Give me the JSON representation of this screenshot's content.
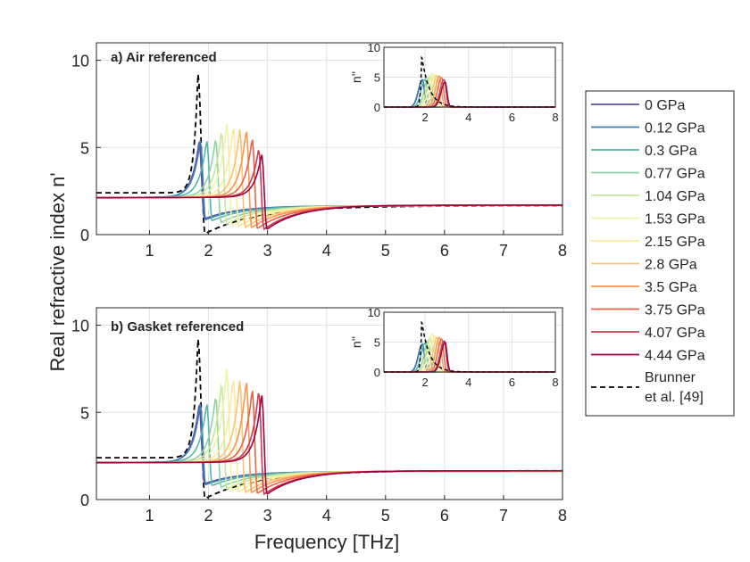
{
  "chart_data": {
    "type": "line",
    "ylabel": "Real refractive index n'",
    "xlabel": "Frequency [THz]",
    "legend": {
      "placement": "right",
      "entries": [
        {
          "label": "0 GPa",
          "color": "#5E4FA2"
        },
        {
          "label": "0.12 GPa",
          "color": "#3A7DB8"
        },
        {
          "label": "0.3 GPa",
          "color": "#52B6A9"
        },
        {
          "label": "0.77 GPa",
          "color": "#8FD2A4"
        },
        {
          "label": "1.04 GPa",
          "color": "#C8E89C"
        },
        {
          "label": "1.53 GPa",
          "color": "#EEF5A8"
        },
        {
          "label": "2.15 GPa",
          "color": "#FDE9A0"
        },
        {
          "label": "2.8 GPa",
          "color": "#FDC46E"
        },
        {
          "label": "3.5 GPa",
          "color": "#F79656"
        },
        {
          "label": "3.75 GPa",
          "color": "#EB6145"
        },
        {
          "label": "4.07 GPa",
          "color": "#CE3C4D"
        },
        {
          "label": "4.44 GPa",
          "color": "#9E0142"
        },
        {
          "label": "Brunner et al. [49]",
          "label_lines": [
            "Brunner",
            "et al. [49]"
          ],
          "color": "#000000",
          "dashed": true
        }
      ]
    },
    "panels": [
      {
        "id": "a",
        "title": "a) Air referenced",
        "xlim": [
          0.1,
          8
        ],
        "ylim": [
          0,
          11
        ],
        "xticks": [
          1,
          2,
          3,
          4,
          5,
          6,
          7,
          8
        ],
        "yticks": [
          0,
          5,
          10
        ],
        "grid": true,
        "series_params": [
          {
            "name": "0 GPa",
            "peak_x": 1.84,
            "peak_y": 5.3,
            "min_y": 0.9,
            "base": 2.1,
            "high": 1.65
          },
          {
            "name": "0.12 GPa",
            "peak_x": 1.86,
            "peak_y": 5.4,
            "min_y": 0.85,
            "base": 2.12,
            "high": 1.65
          },
          {
            "name": "0.3 GPa",
            "peak_x": 1.97,
            "peak_y": 5.4,
            "min_y": 0.8,
            "base": 2.12,
            "high": 1.65
          },
          {
            "name": "0.77 GPa",
            "peak_x": 2.12,
            "peak_y": 5.5,
            "min_y": 0.7,
            "base": 2.12,
            "high": 1.65
          },
          {
            "name": "1.04 GPa",
            "peak_x": 2.22,
            "peak_y": 5.9,
            "min_y": 0.6,
            "base": 2.12,
            "high": 1.66
          },
          {
            "name": "1.53 GPa",
            "peak_x": 2.31,
            "peak_y": 6.4,
            "min_y": 0.5,
            "base": 2.12,
            "high": 1.66
          },
          {
            "name": "2.15 GPa",
            "peak_x": 2.42,
            "peak_y": 6.2,
            "min_y": 0.45,
            "base": 2.12,
            "high": 1.67
          },
          {
            "name": "2.8 GPa",
            "peak_x": 2.53,
            "peak_y": 6.0,
            "min_y": 0.4,
            "base": 2.12,
            "high": 1.67
          },
          {
            "name": "3.5 GPa",
            "peak_x": 2.64,
            "peak_y": 6.0,
            "min_y": 0.4,
            "base": 2.12,
            "high": 1.68
          },
          {
            "name": "3.75 GPa",
            "peak_x": 2.74,
            "peak_y": 5.5,
            "min_y": 0.35,
            "base": 2.12,
            "high": 1.68
          },
          {
            "name": "4.07 GPa",
            "peak_x": 2.85,
            "peak_y": 4.9,
            "min_y": 0.3,
            "base": 2.12,
            "high": 1.69
          },
          {
            "name": "4.44 GPa",
            "peak_x": 2.9,
            "peak_y": 4.6,
            "min_y": 0.3,
            "base": 2.12,
            "high": 1.69
          }
        ],
        "reference": {
          "name": "Brunner et al. [49]",
          "peak_x": 1.82,
          "peak_y": 9.2,
          "min_y": 0.05,
          "base": 2.4,
          "high": 1.65
        },
        "inset": {
          "ylabel": "n''",
          "xlim": [
            0.1,
            8
          ],
          "ylim": [
            0,
            10
          ],
          "xticks": [
            2,
            4,
            6,
            8
          ],
          "yticks": [
            0,
            5,
            10
          ],
          "series_peaks": [
            {
              "x": 1.86,
              "y": 4.5
            },
            {
              "x": 1.88,
              "y": 4.6
            },
            {
              "x": 1.99,
              "y": 4.6
            },
            {
              "x": 2.14,
              "y": 4.8
            },
            {
              "x": 2.24,
              "y": 5.2
            },
            {
              "x": 2.33,
              "y": 5.6
            },
            {
              "x": 2.44,
              "y": 5.4
            },
            {
              "x": 2.55,
              "y": 5.3
            },
            {
              "x": 2.66,
              "y": 5.2
            },
            {
              "x": 2.76,
              "y": 4.9
            },
            {
              "x": 2.87,
              "y": 4.6
            },
            {
              "x": 2.92,
              "y": 4.2
            }
          ],
          "reference_peak": {
            "x": 1.84,
            "y": 8.6
          }
        }
      },
      {
        "id": "b",
        "title": "b) Gasket referenced",
        "xlim": [
          0.1,
          8
        ],
        "ylim": [
          0,
          11
        ],
        "xticks": [
          1,
          2,
          3,
          4,
          5,
          6,
          7,
          8
        ],
        "yticks": [
          0,
          5,
          10
        ],
        "grid": true,
        "series_params": [
          {
            "name": "0 GPa",
            "peak_x": 1.84,
            "peak_y": 5.4,
            "min_y": 0.9,
            "base": 2.1,
            "high": 1.6
          },
          {
            "name": "0.12 GPa",
            "peak_x": 1.86,
            "peak_y": 5.5,
            "min_y": 0.85,
            "base": 2.12,
            "high": 1.6
          },
          {
            "name": "0.3 GPa",
            "peak_x": 1.97,
            "peak_y": 5.5,
            "min_y": 0.8,
            "base": 2.12,
            "high": 1.6
          },
          {
            "name": "0.77 GPa",
            "peak_x": 2.12,
            "peak_y": 5.9,
            "min_y": 0.7,
            "base": 2.12,
            "high": 1.61
          },
          {
            "name": "1.04 GPa",
            "peak_x": 2.22,
            "peak_y": 6.7,
            "min_y": 0.6,
            "base": 2.12,
            "high": 1.62
          },
          {
            "name": "1.53 GPa",
            "peak_x": 2.31,
            "peak_y": 7.5,
            "min_y": 0.5,
            "base": 2.12,
            "high": 1.62
          },
          {
            "name": "2.15 GPa",
            "peak_x": 2.42,
            "peak_y": 7.0,
            "min_y": 0.45,
            "base": 2.12,
            "high": 1.63
          },
          {
            "name": "2.8 GPa",
            "peak_x": 2.53,
            "peak_y": 6.8,
            "min_y": 0.4,
            "base": 2.12,
            "high": 1.63
          },
          {
            "name": "3.5 GPa",
            "peak_x": 2.64,
            "peak_y": 6.8,
            "min_y": 0.4,
            "base": 2.12,
            "high": 1.64
          },
          {
            "name": "3.75 GPa",
            "peak_x": 2.74,
            "peak_y": 6.3,
            "min_y": 0.35,
            "base": 2.12,
            "high": 1.64
          },
          {
            "name": "4.07 GPa",
            "peak_x": 2.85,
            "peak_y": 6.2,
            "min_y": 0.3,
            "base": 2.12,
            "high": 1.65
          },
          {
            "name": "4.44 GPa",
            "peak_x": 2.9,
            "peak_y": 6.0,
            "min_y": 0.3,
            "base": 2.12,
            "high": 1.65
          }
        ],
        "reference": {
          "name": "Brunner et al. [49]",
          "peak_x": 1.82,
          "peak_y": 9.2,
          "min_y": 0.05,
          "base": 2.4,
          "high": 1.65
        },
        "inset": {
          "ylabel": "n''",
          "xlim": [
            0.1,
            8
          ],
          "ylim": [
            0,
            10
          ],
          "xticks": [
            2,
            4,
            6,
            8
          ],
          "yticks": [
            0,
            5,
            10
          ],
          "series_peaks": [
            {
              "x": 1.86,
              "y": 4.6
            },
            {
              "x": 1.88,
              "y": 4.7
            },
            {
              "x": 1.99,
              "y": 4.8
            },
            {
              "x": 2.14,
              "y": 5.2
            },
            {
              "x": 2.24,
              "y": 5.8
            },
            {
              "x": 2.33,
              "y": 6.4
            },
            {
              "x": 2.44,
              "y": 6.0
            },
            {
              "x": 2.55,
              "y": 5.8
            },
            {
              "x": 2.66,
              "y": 5.8
            },
            {
              "x": 2.76,
              "y": 5.5
            },
            {
              "x": 2.87,
              "y": 5.2
            },
            {
              "x": 2.92,
              "y": 5.0
            }
          ],
          "reference_peak": {
            "x": 1.84,
            "y": 8.6
          }
        }
      }
    ]
  }
}
